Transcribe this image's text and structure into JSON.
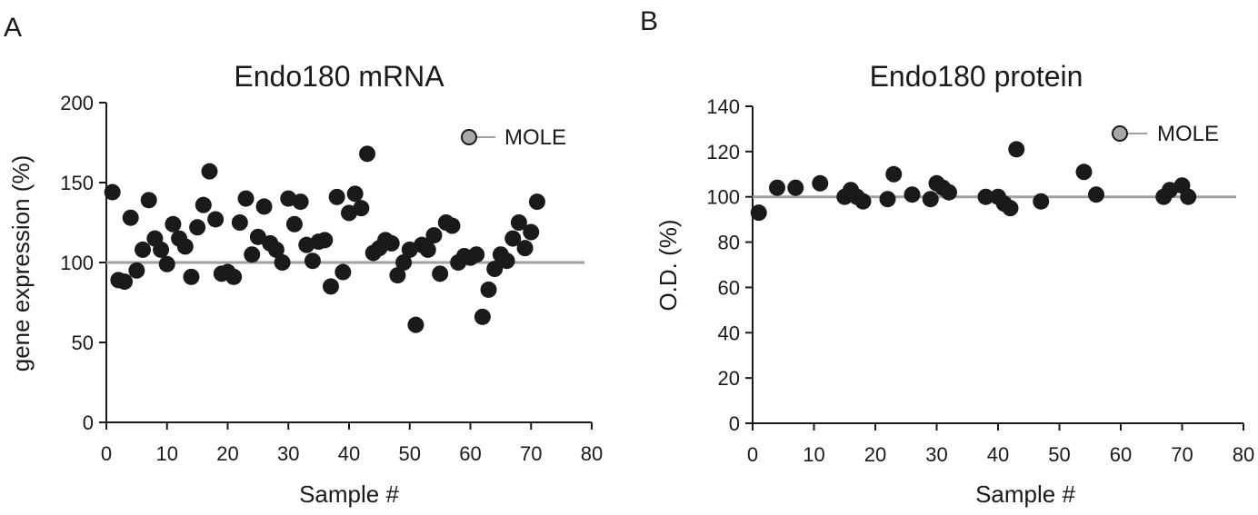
{
  "chart_data": [
    {
      "type": "scatter",
      "panel": "A",
      "title": "Endo180 mRNA",
      "xlabel": "Sample #",
      "ylabel": "gene expression (%)",
      "xlim": [
        0,
        80
      ],
      "ylim": [
        0,
        200
      ],
      "xticks": [
        0,
        10,
        20,
        30,
        40,
        50,
        60,
        70,
        80
      ],
      "yticks": [
        0,
        50,
        100,
        150,
        200
      ],
      "reference_line": 100,
      "legend": "MOLE",
      "legend_color": "#a8a8a8",
      "point_color": "#1a1a1a",
      "ref_color": "#a0a0a0",
      "x": [
        1,
        2,
        3,
        4,
        5,
        6,
        7,
        8,
        9,
        10,
        11,
        12,
        13,
        14,
        15,
        16,
        17,
        18,
        19,
        20,
        21,
        22,
        23,
        24,
        25,
        26,
        27,
        28,
        29,
        30,
        31,
        32,
        33,
        34,
        35,
        36,
        37,
        38,
        39,
        40,
        41,
        42,
        43,
        44,
        45,
        46,
        47,
        48,
        49,
        50,
        51,
        52,
        53,
        54,
        55,
        56,
        57,
        58,
        59,
        60,
        61,
        62,
        63,
        64,
        65,
        66,
        67,
        68,
        69,
        70,
        71
      ],
      "y": [
        144,
        89,
        88,
        128,
        95,
        108,
        139,
        115,
        108,
        99,
        124,
        115,
        110,
        91,
        122,
        136,
        157,
        127,
        93,
        94,
        91,
        125,
        140,
        105,
        116,
        135,
        112,
        108,
        100,
        140,
        124,
        138,
        111,
        101,
        113,
        114,
        85,
        141,
        94,
        131,
        143,
        134,
        168,
        106,
        109,
        114,
        112,
        92,
        100,
        108,
        61,
        111,
        108,
        117,
        93,
        125,
        123,
        100,
        104,
        103,
        105,
        66,
        83,
        96,
        105,
        101,
        115,
        125,
        109,
        119,
        138
      ]
    },
    {
      "type": "scatter",
      "panel": "B",
      "title": "Endo180 protein",
      "xlabel": "Sample #",
      "ylabel": "O.D. (%)",
      "xlim": [
        0,
        80
      ],
      "ylim": [
        0,
        140
      ],
      "xticks": [
        0,
        10,
        20,
        30,
        40,
        50,
        60,
        70,
        80
      ],
      "yticks": [
        0,
        20,
        40,
        60,
        80,
        100,
        120,
        140
      ],
      "reference_line": 100,
      "legend": "MOLE",
      "legend_color": "#a8a8a8",
      "point_color": "#1a1a1a",
      "ref_color": "#a0a0a0",
      "x": [
        1,
        4,
        7,
        11,
        15,
        16,
        17,
        18,
        22,
        23,
        26,
        29,
        30,
        31,
        32,
        38,
        40,
        41,
        42,
        43,
        47,
        54,
        56,
        67,
        68,
        70,
        71
      ],
      "y": [
        93,
        104,
        104,
        106,
        100,
        103,
        100,
        98,
        99,
        110,
        101,
        99,
        106,
        104,
        102,
        100,
        100,
        97,
        95,
        121,
        98,
        111,
        101,
        100,
        103,
        105,
        100
      ]
    }
  ]
}
